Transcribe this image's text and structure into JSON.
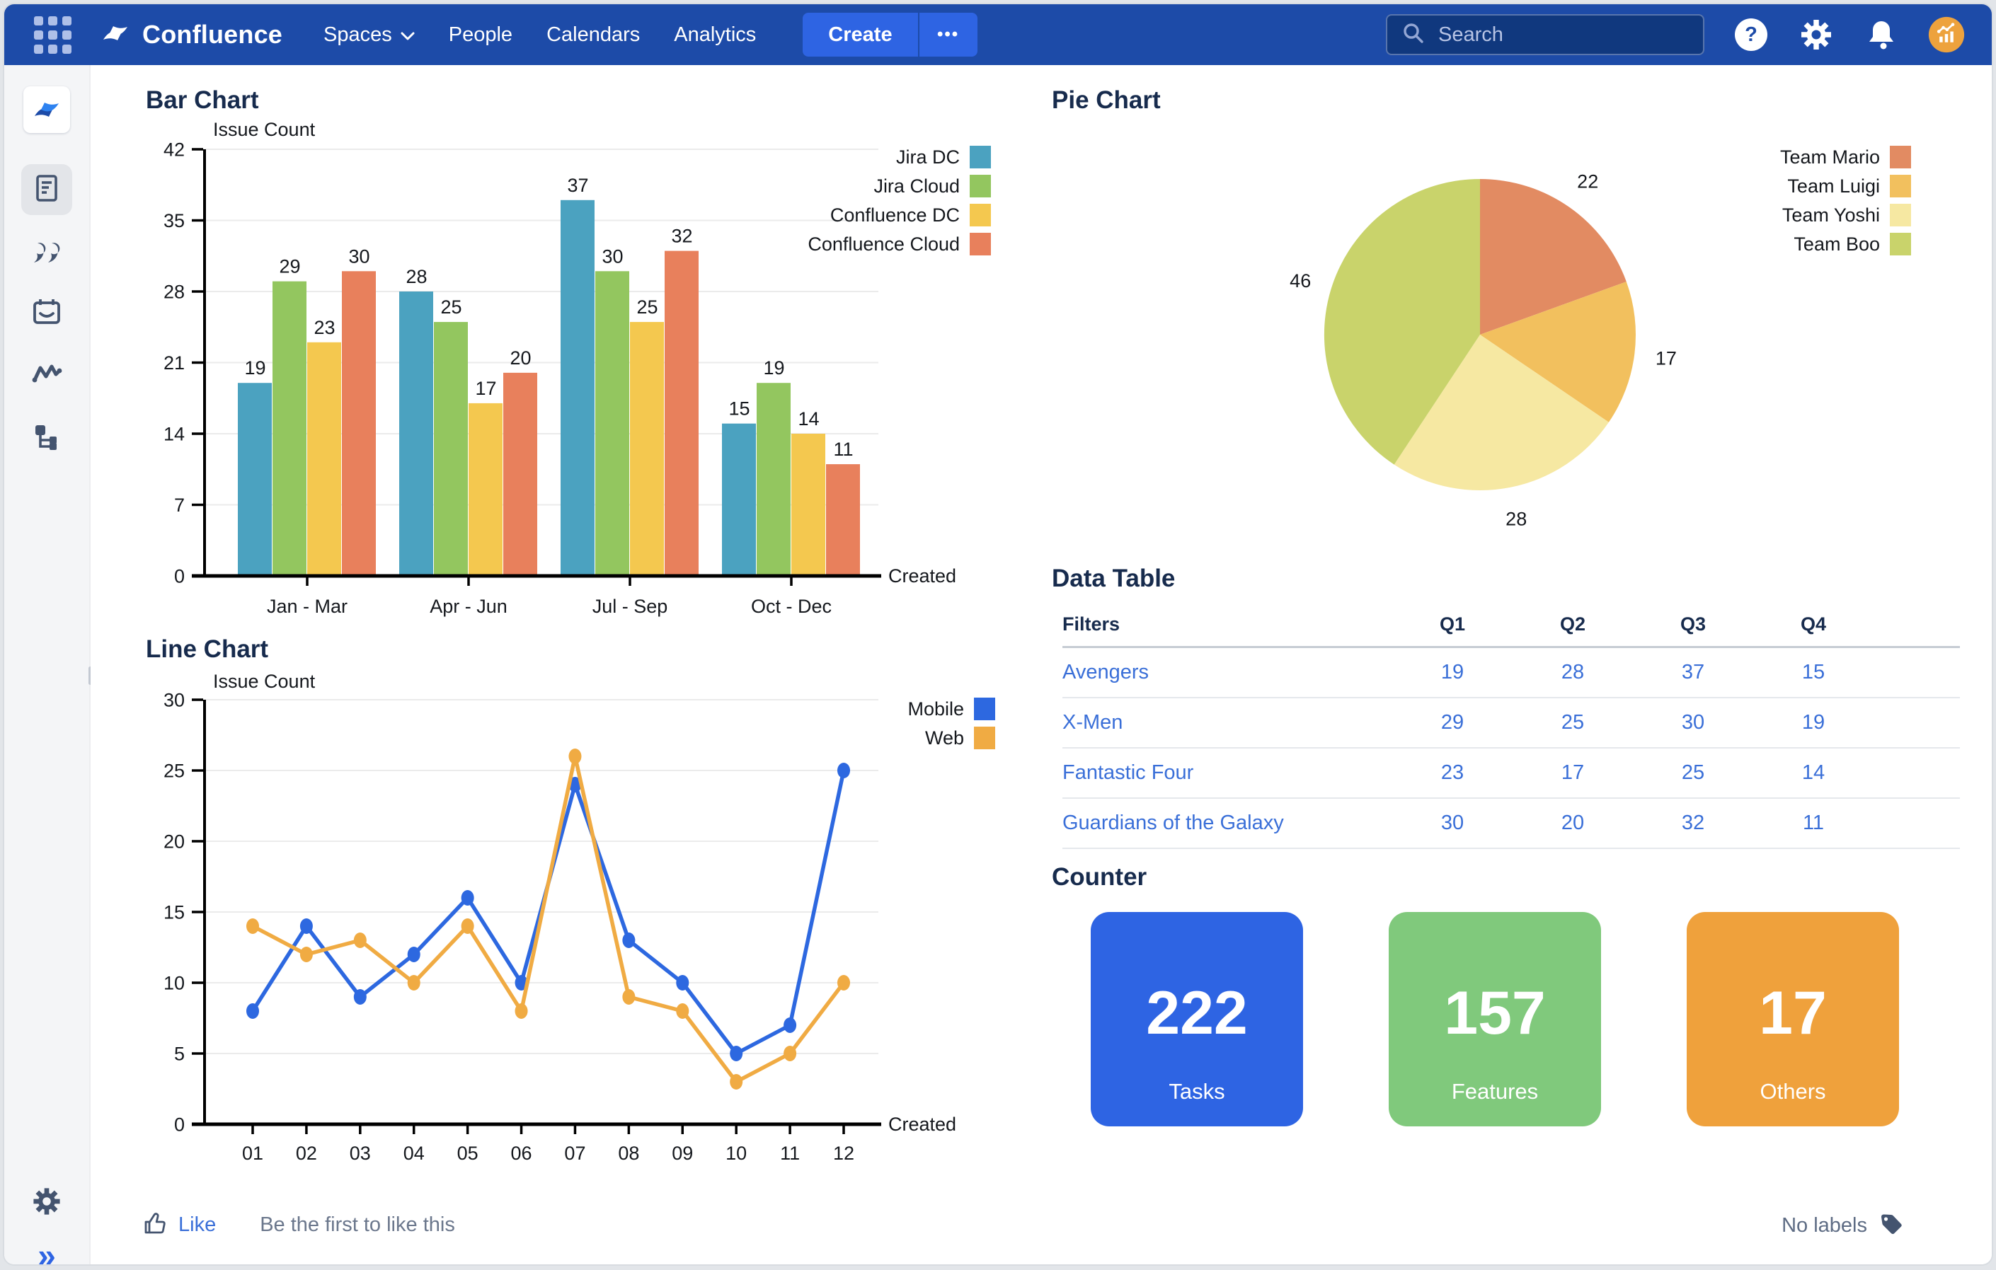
{
  "nav": {
    "logo_text": "Confluence",
    "menu": [
      {
        "label": "Spaces",
        "has_chevron": true
      },
      {
        "label": "People",
        "has_chevron": false
      },
      {
        "label": "Calendars",
        "has_chevron": false
      },
      {
        "label": "Analytics",
        "has_chevron": false
      }
    ],
    "create_label": "Create",
    "more_label": "•••",
    "search": {
      "placeholder": "Search"
    }
  },
  "colors": {
    "nav_bg": "#1D4BA8",
    "accent_blue": "#2E64E3",
    "link_blue": "#3A6FD8",
    "title_navy": "#172B4D",
    "avatar_orange": "#EDA23D",
    "sidebar_bg": "#F4F5F7"
  },
  "chart_data": [
    {
      "id": "bar",
      "type": "bar",
      "title": "Bar Chart",
      "ylabel": "Issue Count",
      "xlabel": "Created",
      "categories": [
        "Jan - Mar",
        "Apr - Jun",
        "Jul - Sep",
        "Oct - Dec"
      ],
      "series": [
        {
          "name": "Jira DC",
          "color": "#4BA2C0",
          "values": [
            19,
            28,
            37,
            15
          ]
        },
        {
          "name": "Jira Cloud",
          "color": "#93C65F",
          "values": [
            29,
            25,
            30,
            19
          ]
        },
        {
          "name": "Confluence DC",
          "color": "#F4C84F",
          "values": [
            23,
            17,
            25,
            14
          ]
        },
        {
          "name": "Confluence Cloud",
          "color": "#E8805C",
          "values": [
            30,
            20,
            32,
            11
          ]
        }
      ],
      "ylim": [
        0,
        42
      ],
      "yticks": [
        0,
        7,
        14,
        21,
        28,
        35,
        42
      ],
      "grid": true,
      "legend_position": "right"
    },
    {
      "id": "pie",
      "type": "pie",
      "title": "Pie Chart",
      "labels": [
        "Team Mario",
        "Team Luigi",
        "Team Yoshi",
        "Team Boo"
      ],
      "values": [
        22,
        17,
        28,
        46
      ],
      "colors": [
        "#E28B62",
        "#F2C05E",
        "#F6E8A2",
        "#C9D36B"
      ],
      "legend_position": "right"
    },
    {
      "id": "line",
      "type": "line",
      "title": "Line Chart",
      "ylabel": "Issue Count",
      "xlabel": "Created",
      "x": [
        "01",
        "02",
        "03",
        "04",
        "05",
        "06",
        "07",
        "08",
        "09",
        "10",
        "11",
        "12"
      ],
      "series": [
        {
          "name": "Mobile",
          "color": "#2D68E0",
          "values": [
            8,
            14,
            9,
            12,
            16,
            10,
            24,
            13,
            10,
            5,
            7,
            25
          ]
        },
        {
          "name": "Web",
          "color": "#F0AB43",
          "values": [
            14,
            12,
            13,
            10,
            14,
            8,
            26,
            9,
            8,
            3,
            5,
            10
          ]
        }
      ],
      "ylim": [
        0,
        30
      ],
      "yticks": [
        0,
        5,
        10,
        15,
        20,
        25,
        30
      ],
      "grid": true,
      "legend_position": "right"
    }
  ],
  "data_table": {
    "title": "Data Table",
    "columns": [
      "Filters",
      "Q1",
      "Q2",
      "Q3",
      "Q4"
    ],
    "rows": [
      {
        "name": "Avengers",
        "values": [
          19,
          28,
          37,
          15
        ]
      },
      {
        "name": "X-Men",
        "values": [
          29,
          25,
          30,
          19
        ]
      },
      {
        "name": "Fantastic Four",
        "values": [
          23,
          17,
          25,
          14
        ]
      },
      {
        "name": "Guardians of the Galaxy",
        "values": [
          30,
          20,
          32,
          11
        ]
      }
    ]
  },
  "counter": {
    "title": "Counter",
    "cards": [
      {
        "value": "222",
        "label": "Tasks",
        "color": "#2E64E3"
      },
      {
        "value": "157",
        "label": "Features",
        "color": "#80C97C"
      },
      {
        "value": "17",
        "label": "Others",
        "color": "#EFA13C"
      }
    ]
  },
  "footer": {
    "like_label": "Like",
    "like_hint": "Be the first to like this",
    "labels_text": "No labels"
  }
}
